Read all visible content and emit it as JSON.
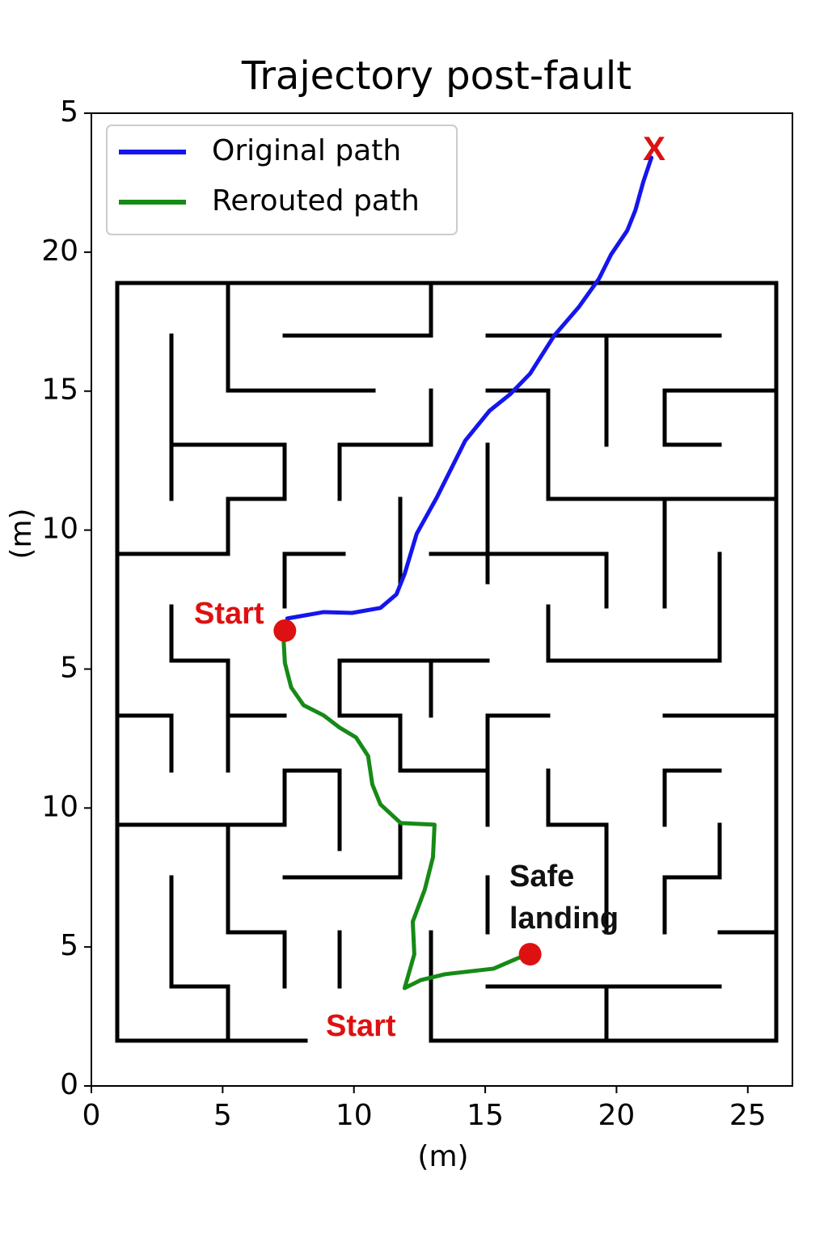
{
  "chart_data": {
    "type": "line",
    "title": "Trajectory post-fault",
    "xlabel": "(m)",
    "ylabel": "(m)",
    "xlim": [
      0,
      26.7
    ],
    "ylim": [
      0,
      35
    ],
    "xticks": [
      0,
      5,
      10,
      15,
      20,
      25
    ],
    "yticks": [
      0,
      5,
      10,
      {
        "value": 15,
        "label": "5"
      },
      {
        "value": 20,
        "label": "10"
      },
      {
        "value": 25,
        "label": "15"
      },
      {
        "value": 30,
        "label": "20"
      },
      {
        "value": 35,
        "label": "5"
      }
    ],
    "legend": "upper left",
    "series": [
      {
        "name": "Original path",
        "color": "#1515ee",
        "x": [
          7.46,
          8.85,
          9.93,
          11.01,
          11.62,
          11.93,
          12.39,
          13.16,
          14.24,
          15.16,
          15.94,
          16.71,
          17.63,
          18.56,
          19.33,
          19.79,
          20.41,
          20.72,
          21.02,
          21.33
        ],
        "values": [
          16.82,
          17.05,
          17.02,
          17.2,
          17.69,
          18.42,
          19.87,
          21.18,
          23.22,
          24.29,
          24.88,
          25.63,
          27.0,
          28.02,
          29.04,
          29.91,
          30.78,
          31.51,
          32.53,
          33.4
        ]
      },
      {
        "name": "Rerouted path",
        "color": "#168a16",
        "x": [
          7.31,
          7.37,
          7.61,
          8.08,
          8.85,
          9.46,
          10.08,
          10.54,
          10.7,
          11.01,
          11.78,
          13.07,
          13.01,
          12.7,
          12.24,
          12.3,
          11.93,
          12.55,
          13.47,
          15.32,
          16.25,
          16.71
        ],
        "values": [
          16.24,
          15.22,
          14.34,
          13.7,
          13.33,
          12.89,
          12.54,
          11.87,
          10.85,
          10.13,
          9.46,
          9.4,
          8.23,
          7.07,
          5.91,
          4.74,
          3.52,
          3.81,
          4.02,
          4.22,
          4.6,
          4.74
        ]
      }
    ],
    "markers": {
      "color": "#dd1111",
      "x": [
        7.37,
        16.71
      ],
      "values": [
        16.38,
        4.74
      ]
    },
    "annotations": [
      "Start",
      "X",
      "Safe landing",
      "Start"
    ]
  }
}
